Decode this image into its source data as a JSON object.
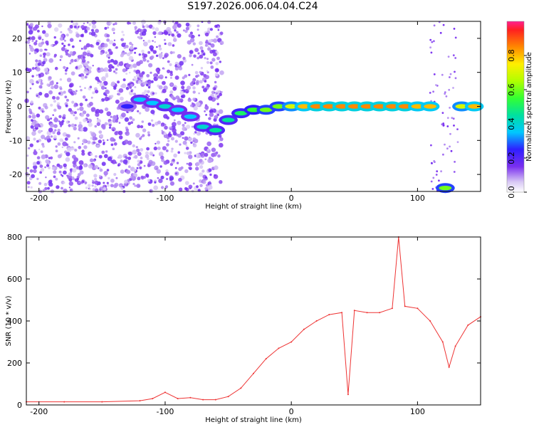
{
  "title": "S197.2026.006.04.04.C24",
  "chart_data": [
    {
      "type": "heatmap",
      "xlabel": "Height of straight line (km)",
      "ylabel": "Frequency (Hz)",
      "xlim": [
        -210,
        150
      ],
      "ylim": [
        -25,
        25
      ],
      "x_ticks": [
        -200,
        -100,
        0,
        100
      ],
      "y_ticks": [
        -20,
        -10,
        0,
        10,
        20
      ],
      "colorbar": {
        "label": "Normalized spectral amplitude",
        "range": [
          0,
          1
        ],
        "ticks": [
          0,
          0.2,
          0.4,
          0.6,
          0.8
        ],
        "tick_labels": [
          "0.0",
          "0.2",
          "0.4",
          "0.6",
          "0.8"
        ]
      },
      "ridge": [
        {
          "x": -130,
          "freq": 0,
          "amp": 0.25
        },
        {
          "x": -120,
          "freq": 2,
          "amp": 0.35
        },
        {
          "x": -110,
          "freq": 1,
          "amp": 0.35
        },
        {
          "x": -100,
          "freq": 0,
          "amp": 0.4
        },
        {
          "x": -90,
          "freq": -1,
          "amp": 0.35
        },
        {
          "x": -80,
          "freq": -3,
          "amp": 0.35
        },
        {
          "x": -70,
          "freq": -6,
          "amp": 0.4
        },
        {
          "x": -60,
          "freq": -7,
          "amp": 0.45
        },
        {
          "x": -50,
          "freq": -4,
          "amp": 0.45
        },
        {
          "x": -40,
          "freq": -2,
          "amp": 0.5
        },
        {
          "x": -30,
          "freq": -1,
          "amp": 0.55
        },
        {
          "x": -20,
          "freq": -1,
          "amp": 0.6
        },
        {
          "x": -10,
          "freq": 0,
          "amp": 0.6
        },
        {
          "x": 0,
          "freq": 0,
          "amp": 0.7
        },
        {
          "x": 10,
          "freq": 0,
          "amp": 0.8
        },
        {
          "x": 20,
          "freq": 0,
          "amp": 0.85
        },
        {
          "x": 30,
          "freq": 0,
          "amp": 0.85
        },
        {
          "x": 40,
          "freq": 0,
          "amp": 0.85
        },
        {
          "x": 50,
          "freq": 0,
          "amp": 0.85
        },
        {
          "x": 60,
          "freq": 0,
          "amp": 0.85
        },
        {
          "x": 70,
          "freq": 0,
          "amp": 0.85
        },
        {
          "x": 80,
          "freq": 0,
          "amp": 0.85
        },
        {
          "x": 90,
          "freq": 0,
          "amp": 0.85
        },
        {
          "x": 100,
          "freq": 0,
          "amp": 0.8
        },
        {
          "x": 110,
          "freq": 0,
          "amp": 0.8
        },
        {
          "x": 122,
          "freq": -24,
          "amp": 0.6
        },
        {
          "x": 135,
          "freq": 0,
          "amp": 0.7
        },
        {
          "x": 145,
          "freq": 0,
          "amp": 0.8
        }
      ]
    },
    {
      "type": "line",
      "xlabel": "Height of straight line (km)",
      "ylabel": "SNR (10 * v/v)",
      "xlim": [
        -210,
        150
      ],
      "ylim": [
        0,
        800
      ],
      "x_ticks": [
        -200,
        -100,
        0,
        100
      ],
      "y_ticks": [
        0,
        200,
        400,
        600,
        800
      ],
      "series": [
        {
          "name": "SNR",
          "color": "#ee3333",
          "x": [
            -210,
            -180,
            -150,
            -120,
            -110,
            -100,
            -90,
            -80,
            -70,
            -60,
            -50,
            -40,
            -30,
            -20,
            -10,
            0,
            10,
            20,
            30,
            40,
            45,
            50,
            60,
            70,
            80,
            85,
            90,
            100,
            110,
            120,
            125,
            130,
            140,
            150
          ],
          "y": [
            15,
            15,
            15,
            20,
            30,
            60,
            30,
            35,
            25,
            25,
            40,
            80,
            150,
            220,
            270,
            300,
            360,
            400,
            430,
            440,
            50,
            450,
            440,
            440,
            460,
            800,
            470,
            460,
            400,
            300,
            180,
            280,
            380,
            420
          ]
        }
      ]
    }
  ]
}
